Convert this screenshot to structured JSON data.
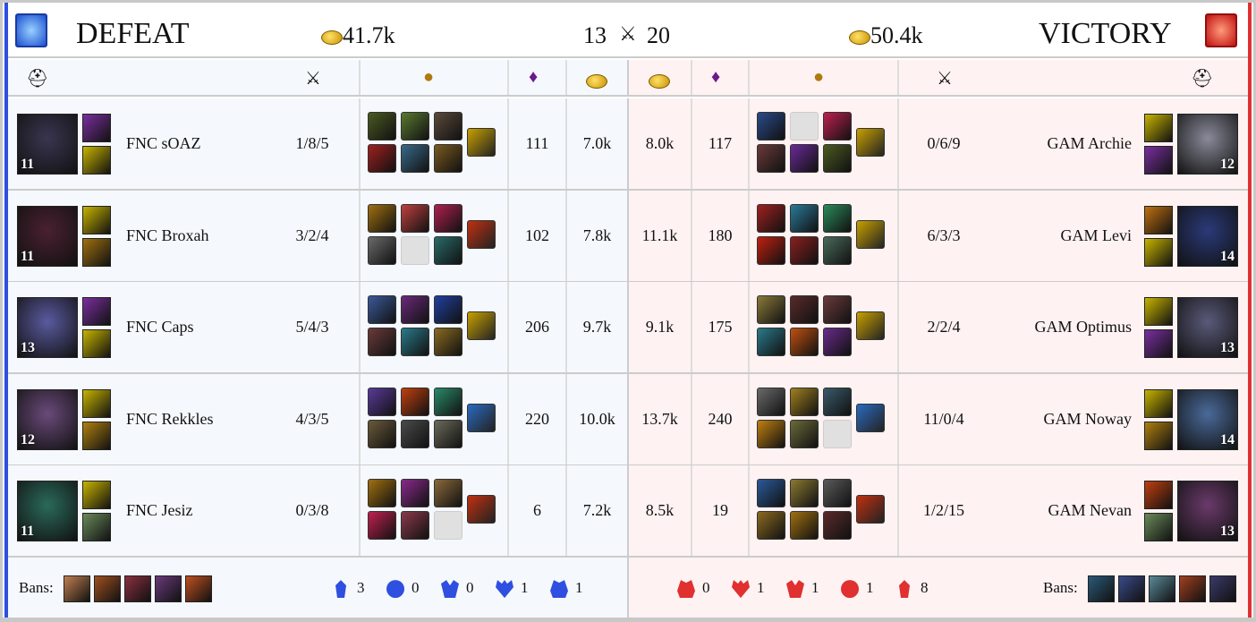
{
  "header": {
    "blue_result": "DEFEAT",
    "red_result": "VICTORY",
    "blue_gold": "41.7k",
    "red_gold": "50.4k",
    "blue_kills": "13",
    "red_kills": "20",
    "blue_color": "#2f4fe0",
    "red_color": "#e03030"
  },
  "columns": [
    "champion-icon",
    "kda-icon",
    "items-icon",
    "minions-icon",
    "gold-icon",
    "gold-icon",
    "minions-icon",
    "items-icon",
    "kda-icon",
    "champion-icon"
  ],
  "blue_players": [
    {
      "name": "FNC sOAZ",
      "kda": "1/8/5",
      "cs": "111",
      "gold": "7.0k",
      "level": "11",
      "champ_color": "#3a3550",
      "spells": [
        "#7a2fa0",
        "#c8b400"
      ],
      "items": [
        "#4a5a20",
        "#5a7a30",
        "#5a4a3a",
        "#a02020",
        "#3a6a8a",
        "#7a5a20"
      ],
      "trinket": "#c8a000"
    },
    {
      "name": "FNC Broxah",
      "kda": "3/2/4",
      "cs": "102",
      "gold": "7.8k",
      "level": "11",
      "champ_color": "#4a2030",
      "spells": [
        "#c8b400",
        "#a07010"
      ],
      "items": [
        "#a07010",
        "#c04040",
        "#b02050",
        "#6a6a6a",
        "#e0e0e0",
        "#2a6a6a"
      ],
      "trinket": "#c03010"
    },
    {
      "name": "FNC Caps",
      "kda": "5/4/3",
      "cs": "206",
      "gold": "9.7k",
      "level": "13",
      "champ_color": "#5a5aa0",
      "spells": [
        "#7a2fa0",
        "#c8b400"
      ],
      "items": [
        "#3a5a9a",
        "#6a2a7a",
        "#2040a0",
        "#6a3a3a",
        "#2a7a8a",
        "#8a6a20"
      ],
      "trinket": "#c8a000"
    },
    {
      "name": "FNC Rekkles",
      "kda": "4/3/5",
      "cs": "220",
      "gold": "10.0k",
      "level": "12",
      "champ_color": "#6a4a7a",
      "spells": [
        "#c8b400",
        "#b08010"
      ],
      "items": [
        "#5a3a9a",
        "#c04010",
        "#2a8a6a",
        "#6a5a3a",
        "#4a4a4a",
        "#6a6a5a"
      ],
      "trinket": "#2a6ac0"
    },
    {
      "name": "FNC Jesiz",
      "kda": "0/3/8",
      "cs": "6",
      "gold": "7.2k",
      "level": "11",
      "champ_color": "#2a6a5a",
      "spells": [
        "#c8b400",
        "#6a8a5a"
      ],
      "items": [
        "#a07010",
        "#8a2a8a",
        "#8a6a3a",
        "#c02050",
        "#8a3a4a",
        "#e0e0e0"
      ],
      "trinket": "#c03010"
    }
  ],
  "red_players": [
    {
      "name": "GAM Archie",
      "kda": "0/6/9",
      "cs": "117",
      "gold": "8.0k",
      "level": "12",
      "champ_color": "#8a8a9a",
      "spells": [
        "#c8b400",
        "#7a2fa0"
      ],
      "items": [
        "#2a4a8a",
        "#e0e0e0",
        "#c02050",
        "#6a3a3a",
        "#6a2a9a",
        "#4a5a20"
      ],
      "trinket": "#c8a000"
    },
    {
      "name": "GAM Levi",
      "kda": "6/3/3",
      "cs": "180",
      "gold": "11.1k",
      "level": "14",
      "champ_color": "#2a3a7a",
      "spells": [
        "#c07010",
        "#c8b400"
      ],
      "items": [
        "#a02020",
        "#2a7a9a",
        "#2a8a5a",
        "#c02010",
        "#8a2020",
        "#4a6a5a"
      ],
      "trinket": "#c8a000"
    },
    {
      "name": "GAM Optimus",
      "kda": "2/2/4",
      "cs": "175",
      "gold": "9.1k",
      "level": "13",
      "champ_color": "#5a5a7a",
      "spells": [
        "#c8b400",
        "#7a2fa0"
      ],
      "items": [
        "#8a7a3a",
        "#5a2a2a",
        "#6a3a3a",
        "#2a7a8a",
        "#c05010",
        "#6a2a8a"
      ],
      "trinket": "#c8a000"
    },
    {
      "name": "GAM Noway",
      "kda": "11/0/4",
      "cs": "240",
      "gold": "13.7k",
      "level": "14",
      "champ_color": "#4a6a9a",
      "spells": [
        "#c8b400",
        "#b08010"
      ],
      "items": [
        "#6a6a6a",
        "#a08020",
        "#3a5a6a",
        "#c08010",
        "#6a6a3a",
        "#e0e0e0"
      ],
      "trinket": "#2a6ac0"
    },
    {
      "name": "GAM Nevan",
      "kda": "1/2/15",
      "cs": "19",
      "gold": "8.5k",
      "level": "13",
      "champ_color": "#6a3a6a",
      "spells": [
        "#c04010",
        "#6a8a5a"
      ],
      "items": [
        "#2a5a9a",
        "#8a7a30",
        "#5a5a5a",
        "#8a6a20",
        "#a07010",
        "#5a2a2a"
      ],
      "trinket": "#c03010"
    }
  ],
  "footer": {
    "bans_label": "Bans:",
    "blue_bans": [
      "#c08050",
      "#a05020",
      "#8a3040",
      "#6a3a7a",
      "#c05020"
    ],
    "red_bans": [
      "#2a5a7a",
      "#3a4a8a",
      "#5a8a9a",
      "#a04020",
      "#3a3a6a"
    ],
    "blue_objectives": [
      {
        "icon": "tower-icon",
        "value": "3"
      },
      {
        "icon": "inhibitor-icon",
        "value": "0"
      },
      {
        "icon": "rift-herald-icon",
        "value": "0"
      },
      {
        "icon": "dragon-icon",
        "value": "1"
      },
      {
        "icon": "baron-icon",
        "value": "1"
      }
    ],
    "red_objectives": [
      {
        "icon": "baron-icon",
        "value": "0"
      },
      {
        "icon": "dragon-icon",
        "value": "1"
      },
      {
        "icon": "rift-herald-icon",
        "value": "1"
      },
      {
        "icon": "inhibitor-icon",
        "value": "1"
      },
      {
        "icon": "tower-icon",
        "value": "8"
      }
    ]
  }
}
